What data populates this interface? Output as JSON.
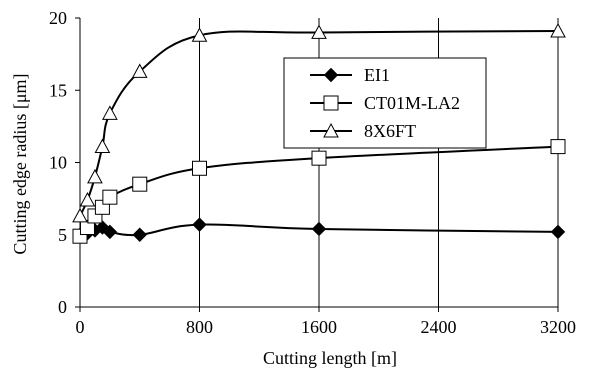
{
  "chart_data": {
    "type": "line",
    "title": "",
    "xlabel": "Cutting length [m]",
    "ylabel": "Cutting edge radius [μm]",
    "xlim": [
      0,
      3200
    ],
    "ylim": [
      0,
      20
    ],
    "xticks": [
      0,
      800,
      1600,
      2400,
      3200
    ],
    "yticks": [
      0,
      5,
      10,
      15,
      20
    ],
    "grid": "vertical",
    "legend_position": "top-right",
    "series": [
      {
        "name": "EI1",
        "marker": "diamond-filled",
        "color": "#000000",
        "x": [
          0,
          50,
          100,
          150,
          200,
          400,
          800,
          1600,
          3200
        ],
        "y": [
          5.0,
          5.1,
          5.3,
          5.5,
          5.2,
          5.0,
          5.7,
          5.4,
          5.2
        ]
      },
      {
        "name": "CT01M-LA2",
        "marker": "square-open",
        "color": "#000000",
        "x": [
          0,
          50,
          100,
          150,
          200,
          400,
          800,
          1600,
          3200
        ],
        "y": [
          4.9,
          5.5,
          6.3,
          6.9,
          7.6,
          8.5,
          9.6,
          10.3,
          11.1
        ]
      },
      {
        "name": "8X6FT",
        "marker": "triangle-open",
        "color": "#000000",
        "x": [
          0,
          50,
          100,
          150,
          200,
          400,
          800,
          1600,
          3200
        ],
        "y": [
          6.3,
          7.4,
          9.0,
          11.1,
          13.4,
          16.3,
          18.8,
          19.0,
          19.1
        ]
      }
    ]
  }
}
